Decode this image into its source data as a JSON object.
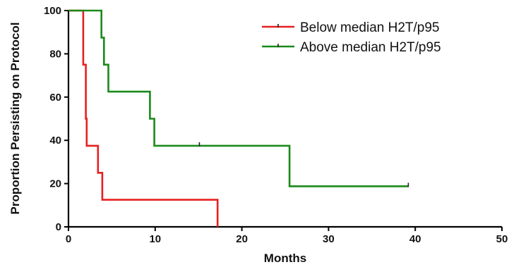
{
  "chart_data": {
    "type": "line",
    "step": true,
    "xlabel": "Months",
    "ylabel": "Proportion Persisting on Protocol",
    "xlim": [
      0,
      50
    ],
    "ylim": [
      0,
      100
    ],
    "x_ticks": [
      0,
      10,
      20,
      30,
      40,
      50
    ],
    "y_ticks": [
      0,
      20,
      40,
      60,
      80,
      100
    ],
    "grid": false,
    "legend_position": "top-right",
    "series": [
      {
        "name": "Below median H2T/p95",
        "color": "#e81f1f",
        "points": [
          [
            0,
            100
          ],
          [
            1.7,
            100
          ],
          [
            1.7,
            75
          ],
          [
            2.0,
            75
          ],
          [
            2.0,
            50
          ],
          [
            2.1,
            50
          ],
          [
            2.1,
            37.5
          ],
          [
            3.4,
            37.5
          ],
          [
            3.4,
            25
          ],
          [
            3.9,
            25
          ],
          [
            3.9,
            12.5
          ],
          [
            17.2,
            12.5
          ],
          [
            17.2,
            0
          ]
        ],
        "censored": []
      },
      {
        "name": "Above median H2T/p95",
        "color": "#1a8a1a",
        "points": [
          [
            0,
            100
          ],
          [
            3.8,
            100
          ],
          [
            3.8,
            87.5
          ],
          [
            4.1,
            87.5
          ],
          [
            4.1,
            75
          ],
          [
            4.6,
            75
          ],
          [
            4.6,
            62.5
          ],
          [
            9.4,
            62.5
          ],
          [
            9.4,
            50
          ],
          [
            9.9,
            50
          ],
          [
            9.9,
            37.5
          ],
          [
            25.5,
            37.5
          ],
          [
            25.5,
            18.75
          ],
          [
            39.2,
            18.75
          ]
        ],
        "censored": [
          [
            15.1,
            37.5
          ],
          [
            39.2,
            18.75
          ]
        ]
      }
    ]
  }
}
